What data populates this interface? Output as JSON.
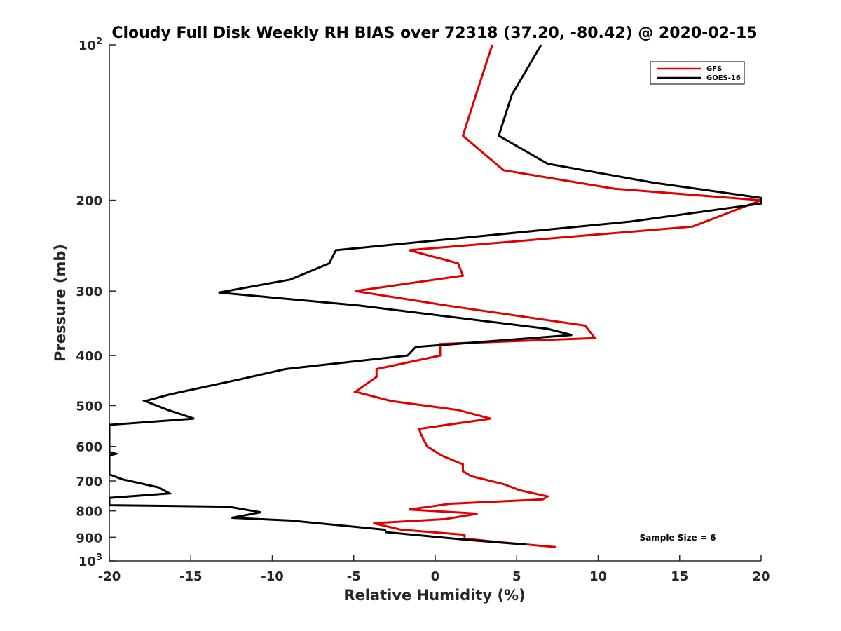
{
  "chart_data": {
    "type": "line",
    "title": "Cloudy Full Disk Weekly RH BIAS over 72318 (37.20, -80.42) @ 2020-02-15",
    "xlabel": "Relative Humidity (%)",
    "ylabel": "Pressure (mb)",
    "xlim": [
      -20,
      20
    ],
    "ylim": [
      100,
      1000
    ],
    "yscale": "log",
    "yreverse": true,
    "x_ticks": [
      "-20",
      "-15",
      "-10",
      "-5",
      "0",
      "5",
      "10",
      "15",
      "20"
    ],
    "y_ticks": [
      {
        "label": "10",
        "sup": "2",
        "value": 100
      },
      {
        "label": "200",
        "sup": "",
        "value": 200
      },
      {
        "label": "300",
        "sup": "",
        "value": 300
      },
      {
        "label": "400",
        "sup": "",
        "value": 400
      },
      {
        "label": "500",
        "sup": "",
        "value": 500
      },
      {
        "label": "600",
        "sup": "",
        "value": 600
      },
      {
        "label": "700",
        "sup": "",
        "value": 700
      },
      {
        "label": "800",
        "sup": "",
        "value": 800
      },
      {
        "label": "900",
        "sup": "",
        "value": 900
      },
      {
        "label": "10",
        "sup": "3",
        "value": 1000
      }
    ],
    "legend": {
      "position": "top-right"
    },
    "annotation": "Sample Size = 6",
    "series": [
      {
        "name": "GFS",
        "color": "#e00000",
        "points": [
          [
            3.5,
            100
          ],
          [
            2.5,
            125
          ],
          [
            1.7,
            150
          ],
          [
            4.2,
            175
          ],
          [
            11.0,
            190
          ],
          [
            20.0,
            200
          ],
          [
            15.8,
            225
          ],
          [
            -1.6,
            250
          ],
          [
            1.4,
            265
          ],
          [
            1.7,
            280
          ],
          [
            -4.9,
            300
          ],
          [
            0.7,
            320
          ],
          [
            9.2,
            350
          ],
          [
            9.8,
            370
          ],
          [
            0.3,
            380
          ],
          [
            0.3,
            400
          ],
          [
            -3.6,
            425
          ],
          [
            -3.6,
            440
          ],
          [
            -4.9,
            470
          ],
          [
            -2.7,
            490
          ],
          [
            1.4,
            510
          ],
          [
            3.4,
            530
          ],
          [
            -1.0,
            555
          ],
          [
            -0.8,
            575
          ],
          [
            -0.5,
            600
          ],
          [
            0.4,
            625
          ],
          [
            1.7,
            650
          ],
          [
            1.7,
            670
          ],
          [
            2.2,
            685
          ],
          [
            4.2,
            710
          ],
          [
            5.2,
            730
          ],
          [
            6.9,
            750
          ],
          [
            6.6,
            760
          ],
          [
            0.9,
            775
          ],
          [
            -1.6,
            795
          ],
          [
            2.6,
            810
          ],
          [
            0.6,
            830
          ],
          [
            -3.8,
            845
          ],
          [
            -2.1,
            870
          ],
          [
            1.8,
            890
          ],
          [
            1.8,
            905
          ],
          [
            3.9,
            920
          ],
          [
            7.4,
            940
          ]
        ]
      },
      {
        "name": "GOES-16",
        "color": "#000000",
        "points": [
          [
            6.5,
            100
          ],
          [
            4.7,
            125
          ],
          [
            3.9,
            150
          ],
          [
            6.9,
            170
          ],
          [
            13.4,
            185
          ],
          [
            20.0,
            198
          ],
          [
            20.0,
            203
          ],
          [
            12.0,
            220
          ],
          [
            -6.1,
            250
          ],
          [
            -6.5,
            265
          ],
          [
            -8.9,
            285
          ],
          [
            -13.3,
            302
          ],
          [
            -4.7,
            320
          ],
          [
            6.9,
            355
          ],
          [
            8.4,
            365
          ],
          [
            -1.2,
            385
          ],
          [
            -1.7,
            400
          ],
          [
            -9.2,
            425
          ],
          [
            -12.0,
            445
          ],
          [
            -16.2,
            475
          ],
          [
            -17.8,
            490
          ],
          [
            -16.4,
            510
          ],
          [
            -14.8,
            530
          ],
          [
            -20.0,
            545
          ],
          [
            -20.0,
            615
          ],
          [
            -19.6,
            620
          ],
          [
            -20.0,
            625
          ],
          [
            -20.0,
            680
          ],
          [
            -19.2,
            695
          ],
          [
            -17.0,
            720
          ],
          [
            -16.3,
            740
          ],
          [
            -20.0,
            755
          ],
          [
            -20.0,
            780
          ],
          [
            -12.7,
            785
          ],
          [
            -10.7,
            805
          ],
          [
            -12.5,
            825
          ],
          [
            -8.9,
            835
          ],
          [
            -3.1,
            870
          ],
          [
            -3.0,
            880
          ],
          [
            1.9,
            910
          ],
          [
            5.6,
            930
          ]
        ]
      }
    ]
  }
}
